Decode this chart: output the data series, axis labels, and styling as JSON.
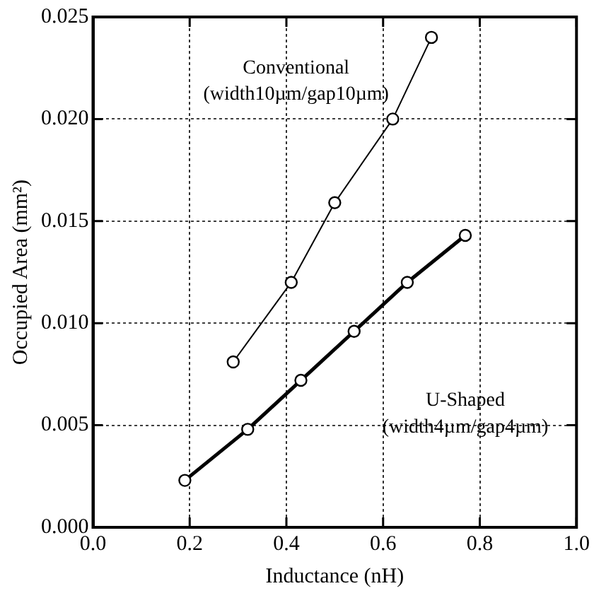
{
  "chart_data": {
    "type": "line",
    "xlabel": "Inductance (nH)",
    "ylabel": "Occupied Area (mm²)",
    "xlim": [
      0,
      1
    ],
    "xticks": [
      {
        "value": 0,
        "label": "0.0"
      },
      {
        "value": 0.2,
        "label": "0.2"
      },
      {
        "value": 0.4,
        "label": "0.4"
      },
      {
        "value": 0.6,
        "label": "0.6"
      },
      {
        "value": 0.8,
        "label": "0.8"
      },
      {
        "value": 1,
        "label": "1.0"
      }
    ],
    "ylim": [
      0,
      0.025
    ],
    "yticks": [
      {
        "value": 0,
        "label": "0.000"
      },
      {
        "value": 0.005,
        "label": "0.005"
      },
      {
        "value": 0.01,
        "label": "0.010"
      },
      {
        "value": 0.015,
        "label": "0.015"
      },
      {
        "value": 0.02,
        "label": "0.020"
      },
      {
        "value": 0.025,
        "label": "0.025"
      }
    ],
    "series": [
      {
        "color": "#000000",
        "x": [
          0.29,
          0.41,
          0.5,
          0.62,
          0.7
        ],
        "values": [
          0.0081,
          0.012,
          0.0159,
          0.02,
          0.024
        ]
      },
      {
        "color": "#000000",
        "x": [
          0.19,
          0.32,
          0.43,
          0.54,
          0.65,
          0.77
        ],
        "values": [
          0.0023,
          0.0048,
          0.0072,
          0.0096,
          0.012,
          0.0143
        ]
      }
    ],
    "annotations": [
      "Conventional",
      "(width10µm/gap10µm)",
      "U-Shaped",
      "(width4µm/gap4µm)"
    ],
    "grid": true,
    "legend": false,
    "marker": "circle",
    "line_style": "solid"
  }
}
